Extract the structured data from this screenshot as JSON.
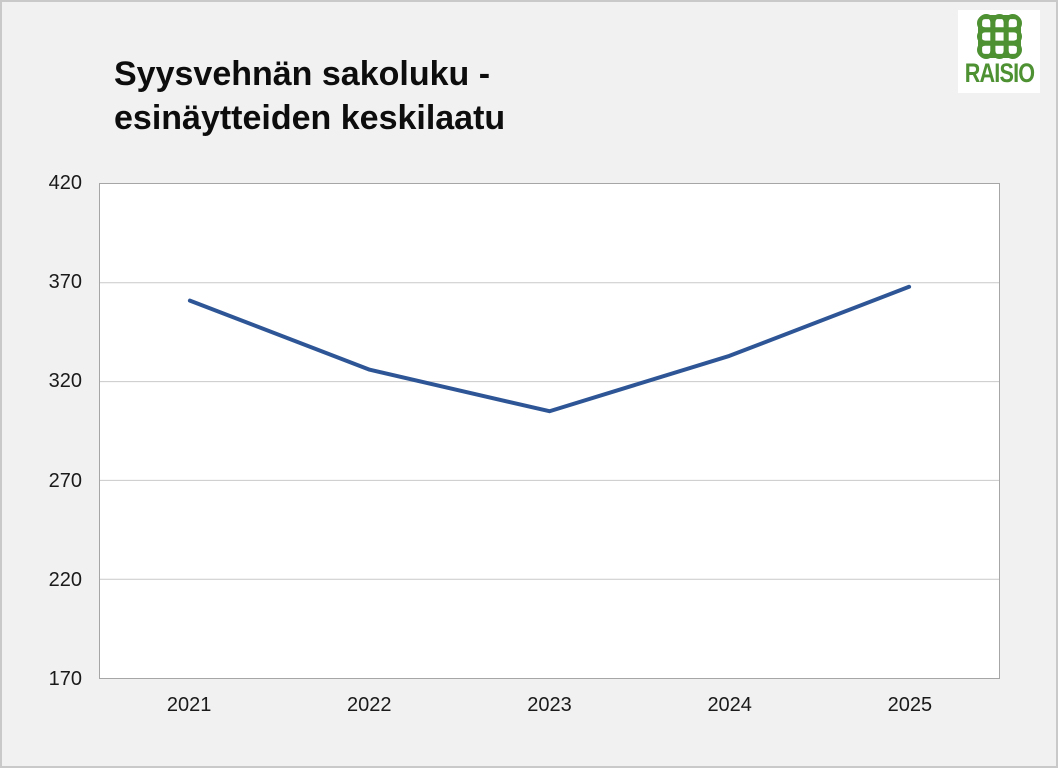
{
  "logo": {
    "text": "RAISIO",
    "color": "#4d9132"
  },
  "title": {
    "lines": [
      "Syysvehnän sakoluku -",
      "esinäytteiden keskilaatu"
    ]
  },
  "colors": {
    "line": "#2e5696",
    "logo_green": "#4d9132",
    "background": "#f1f1f1",
    "plot_background": "#ffffff"
  },
  "chart_data": {
    "type": "line",
    "title": "Syysvehnän sakoluku - esinäytteiden keskilaatu",
    "categories": [
      "2021",
      "2022",
      "2023",
      "2024",
      "2025"
    ],
    "values": [
      361,
      326,
      305,
      333,
      368
    ],
    "xlabel": "",
    "ylabel": "",
    "ylim": [
      170,
      420
    ],
    "yticks": [
      420,
      370,
      320,
      270,
      220,
      170
    ],
    "grid": "horizontal",
    "legend": "none",
    "line_color": "#2e5696",
    "markers": "none"
  }
}
